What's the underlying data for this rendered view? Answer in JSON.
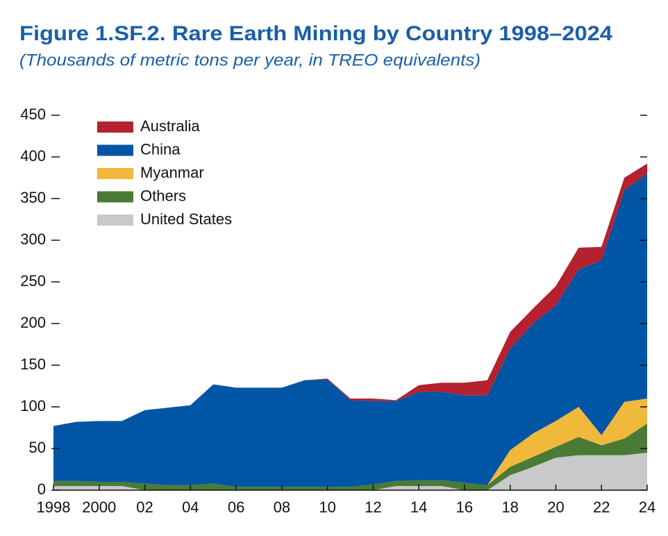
{
  "chart_data": {
    "type": "stacked_area",
    "title": "Figure 1.SF.2.  Rare Earth Mining by Country 1998–2024",
    "subtitle": "(Thousands of metric tons per year, in TREO equivalents)",
    "x": [
      1998,
      1999,
      2000,
      2001,
      2002,
      2003,
      2004,
      2005,
      2006,
      2007,
      2008,
      2009,
      2010,
      2011,
      2012,
      2013,
      2014,
      2015,
      2016,
      2017,
      2018,
      2019,
      2020,
      2021,
      2022,
      2023,
      2024
    ],
    "series": [
      {
        "name": "Australia",
        "color": "#b5212f",
        "values": [
          0,
          0,
          0,
          0,
          0,
          0,
          0,
          0,
          0,
          0,
          0,
          0,
          1,
          2,
          3,
          1,
          8,
          11,
          15,
          18,
          20,
          18,
          23,
          26,
          16,
          15,
          12
        ]
      },
      {
        "name": "China",
        "color": "#0055a5",
        "values": [
          66,
          71,
          73,
          73,
          88,
          93,
          96,
          119,
          119,
          119,
          119,
          128,
          129,
          104,
          100,
          96,
          106,
          106,
          105,
          108,
          122,
          132,
          139,
          165,
          210,
          254,
          270
        ]
      },
      {
        "name": "Myanmar",
        "color": "#f0b93b",
        "values": [
          0,
          0,
          0,
          0,
          0,
          0,
          0,
          0,
          0,
          0,
          0,
          0,
          0,
          0,
          0,
          0,
          0,
          0,
          0,
          0,
          20,
          28,
          31,
          36,
          12,
          44,
          30
        ]
      },
      {
        "name": "Others",
        "color": "#4a7a35",
        "values": [
          6,
          6,
          5,
          5,
          8,
          6,
          6,
          8,
          4,
          4,
          4,
          4,
          4,
          4,
          7,
          6,
          7,
          7,
          9,
          6,
          10,
          12,
          13,
          22,
          12,
          20,
          35
        ]
      },
      {
        "name": "United States",
        "color": "#c8c9cb",
        "values": [
          5,
          5,
          5,
          5,
          0,
          0,
          0,
          0,
          0,
          0,
          0,
          0,
          0,
          0,
          0,
          5,
          5,
          5,
          0,
          0,
          18,
          28,
          39,
          42,
          42,
          42,
          45
        ]
      }
    ],
    "xlim": [
      1998,
      2024
    ],
    "xticks": [
      1998,
      2000,
      {
        "value": 2002,
        "label": "02"
      },
      {
        "value": 2004,
        "label": "04"
      },
      {
        "value": 2006,
        "label": "06"
      },
      {
        "value": 2008,
        "label": "08"
      },
      {
        "value": 2010,
        "label": "10"
      },
      {
        "value": 2012,
        "label": "12"
      },
      {
        "value": 2014,
        "label": "14"
      },
      {
        "value": 2016,
        "label": "16"
      },
      {
        "value": 2018,
        "label": "18"
      },
      {
        "value": 2020,
        "label": "20"
      },
      {
        "value": 2022,
        "label": "22"
      },
      {
        "value": 2024,
        "label": "24"
      }
    ],
    "ylim": [
      0,
      450
    ],
    "yticks": [
      0,
      50,
      100,
      150,
      200,
      250,
      300,
      350,
      400,
      450
    ]
  }
}
